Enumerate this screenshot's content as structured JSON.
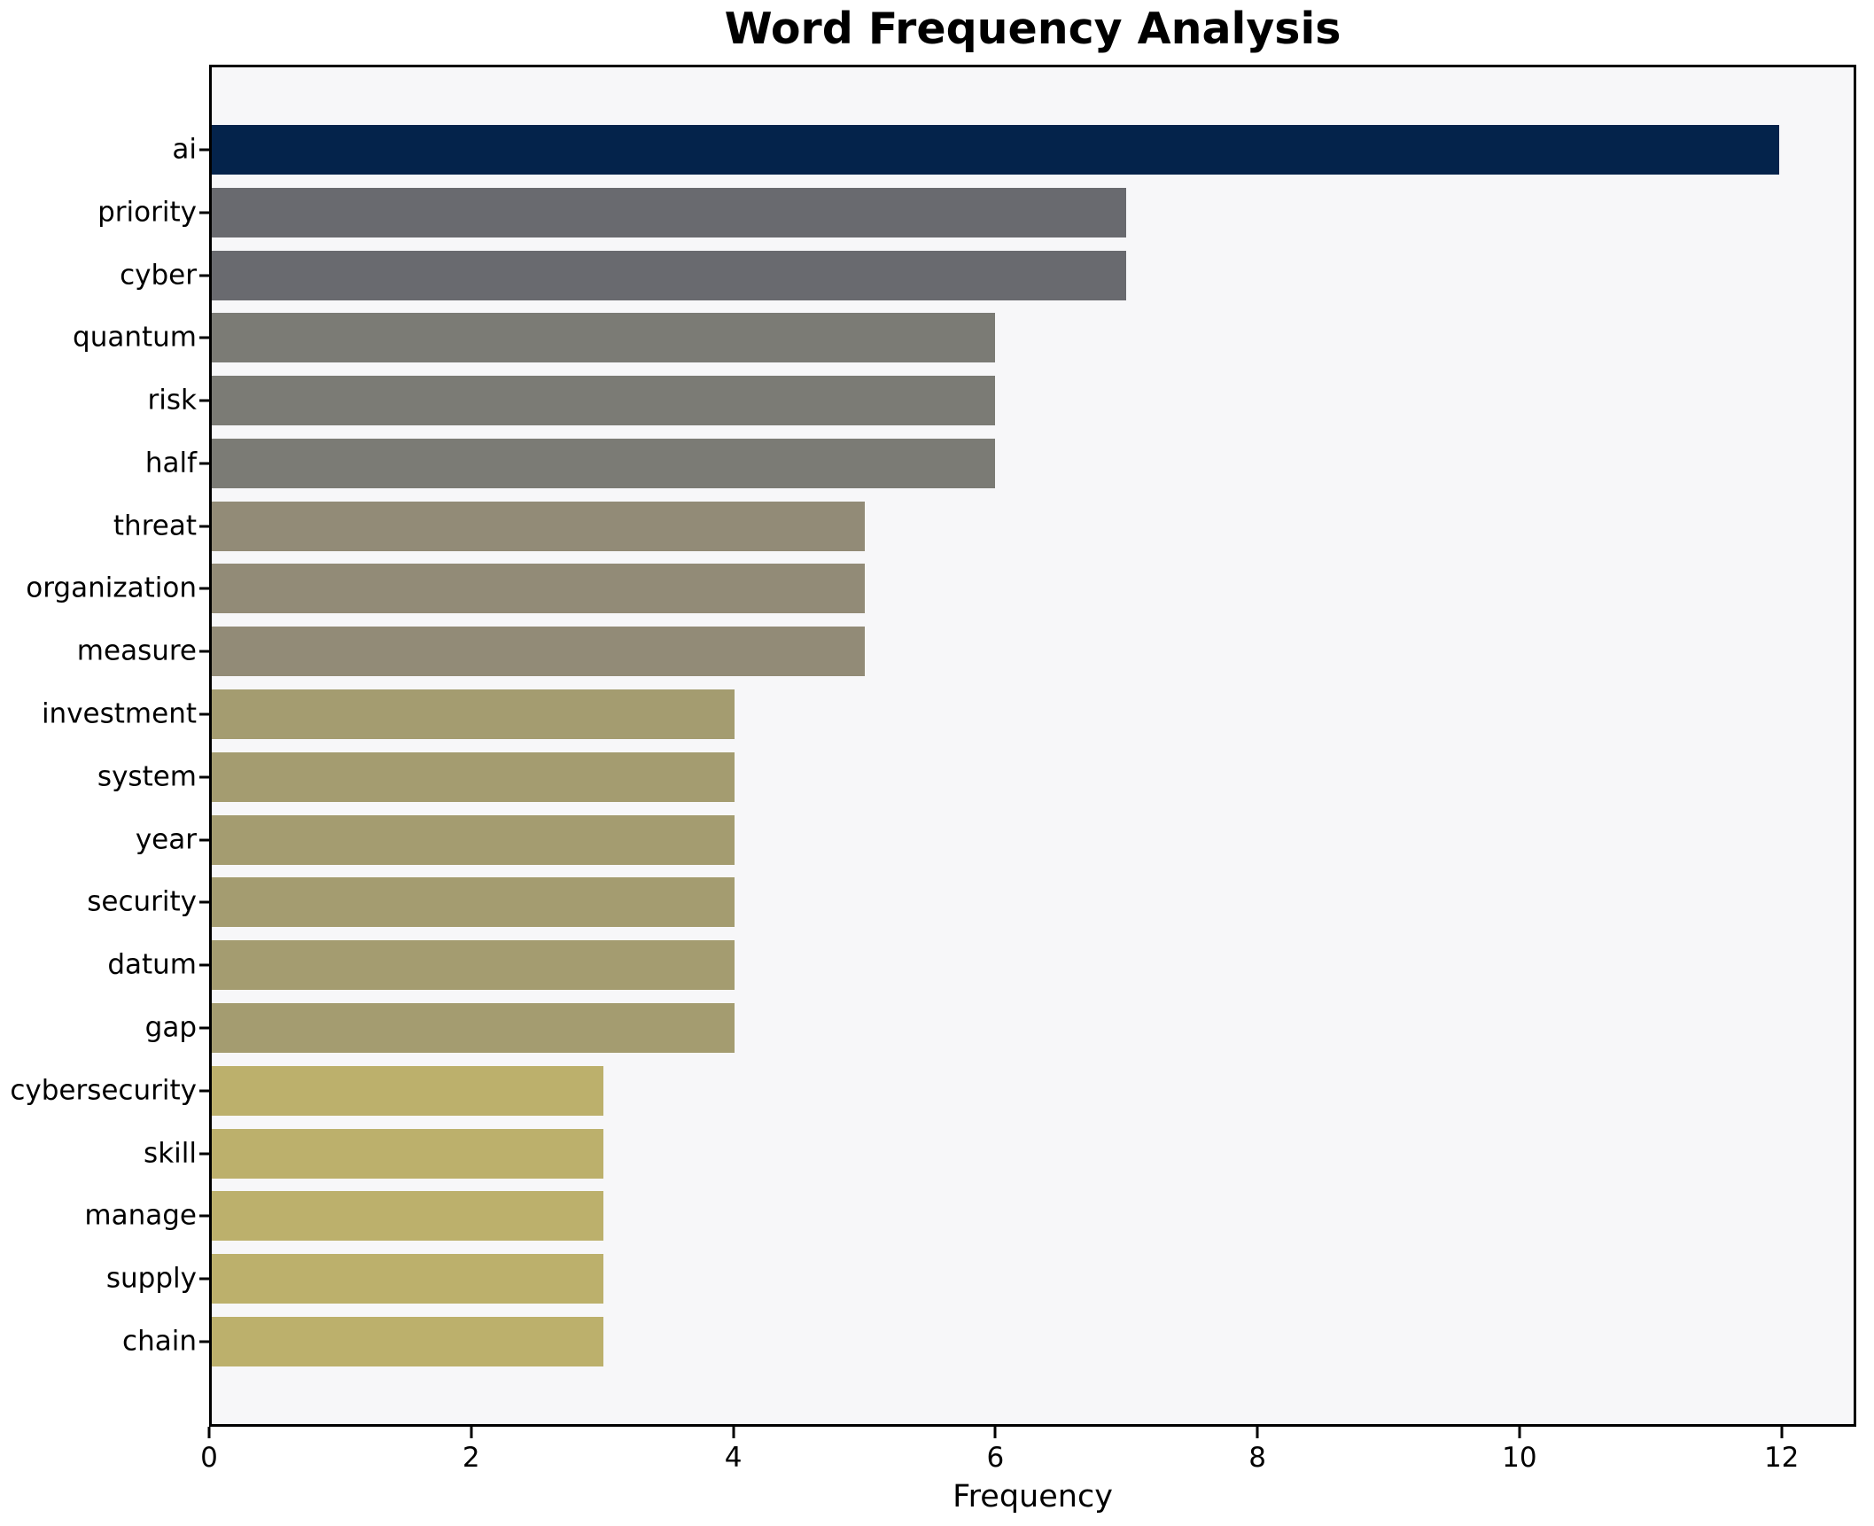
{
  "chart_data": {
    "type": "bar",
    "orientation": "horizontal",
    "title": "Word Frequency Analysis",
    "xlabel": "Frequency",
    "ylabel": "",
    "grid": false,
    "legend": null,
    "xlim": [
      0,
      12.57
    ],
    "xticks": [
      0,
      2,
      4,
      6,
      8,
      10,
      12
    ],
    "plot_background": "#f7f7f9",
    "spine_color": "#000000",
    "categories": [
      "ai",
      "priority",
      "cyber",
      "quantum",
      "risk",
      "half",
      "threat",
      "organization",
      "measure",
      "investment",
      "system",
      "year",
      "security",
      "datum",
      "gap",
      "cybersecurity",
      "skill",
      "manage",
      "supply",
      "chain"
    ],
    "values": [
      12,
      7,
      7,
      6,
      6,
      6,
      5,
      5,
      5,
      4,
      4,
      4,
      4,
      4,
      4,
      3,
      3,
      3,
      3,
      3
    ],
    "colors": [
      "#04234b",
      "#696a6f",
      "#696a6f",
      "#7b7b75",
      "#7b7b75",
      "#7b7b75",
      "#928b77",
      "#928b77",
      "#928b77",
      "#a49c70",
      "#a49c70",
      "#a49c70",
      "#a49c70",
      "#a49c70",
      "#a49c70",
      "#bcb06c",
      "#bcb06c",
      "#bcb06c",
      "#bcb06c",
      "#bcb06c"
    ]
  }
}
